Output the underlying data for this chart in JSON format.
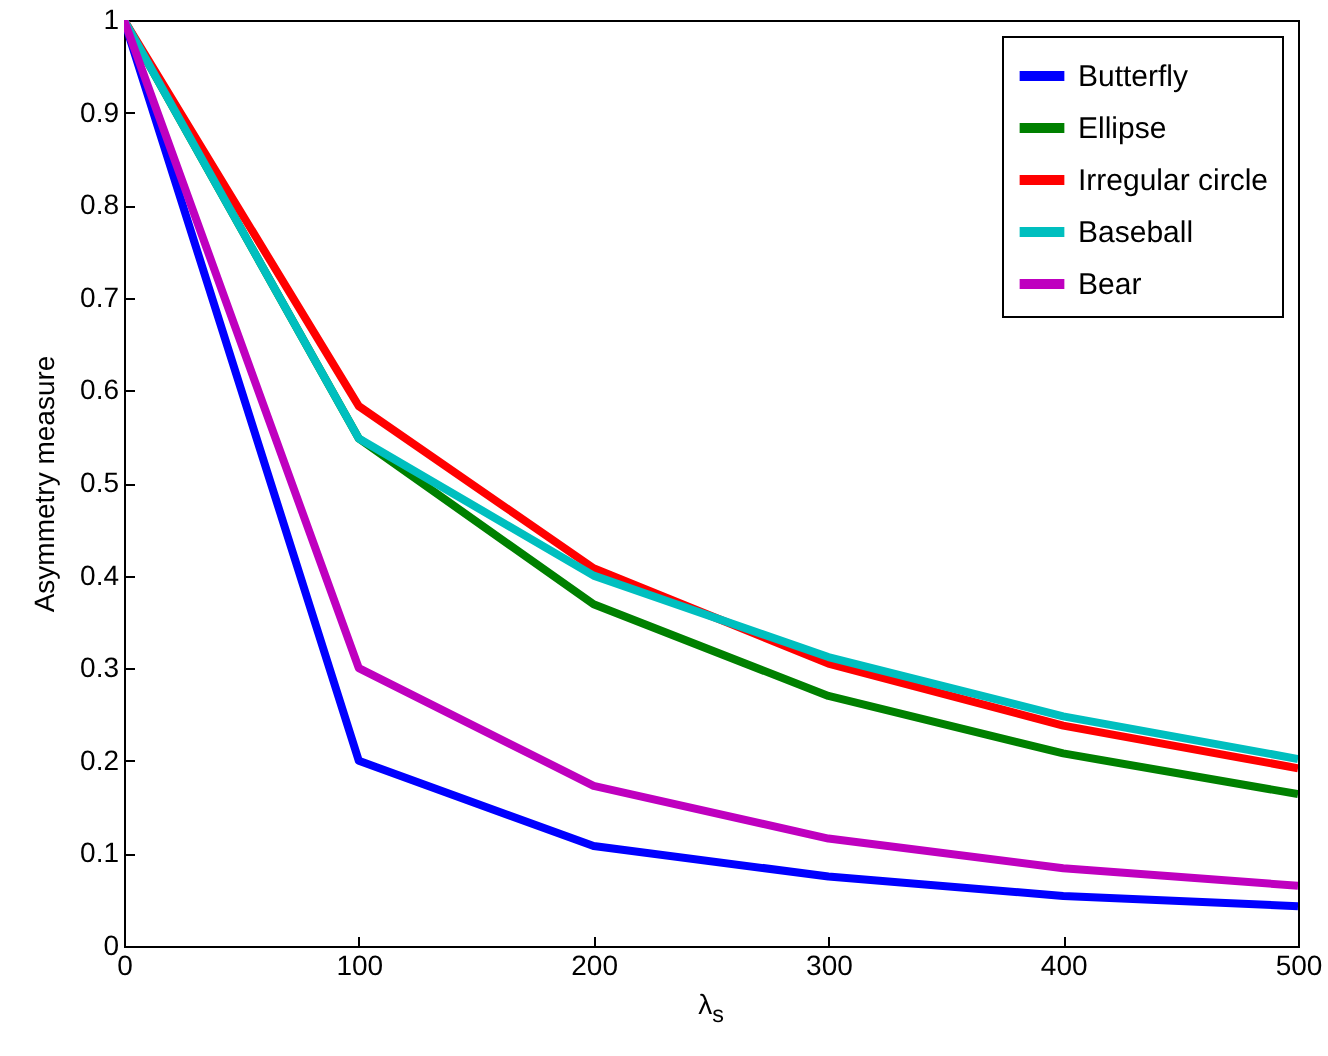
{
  "chart_data": {
    "type": "line",
    "xlabel": "λ$_{s}$",
    "ylabel": "Asymmetry measure",
    "x": [
      0,
      100,
      200,
      300,
      400,
      500
    ],
    "series": [
      {
        "name": "Butterfly",
        "color": "#0000ff",
        "values": [
          1,
          0.2,
          0.108,
          0.075,
          0.054,
          0.043
        ]
      },
      {
        "name": "Ellipse",
        "color": "#008000",
        "values": [
          1,
          0.548,
          0.369,
          0.27,
          0.208,
          0.164
        ]
      },
      {
        "name": "Irregular circle",
        "color": "#ff0000",
        "values": [
          1,
          0.583,
          0.408,
          0.305,
          0.238,
          0.192
        ]
      },
      {
        "name": "Baseball",
        "color": "#00bfbf",
        "values": [
          1,
          0.548,
          0.4,
          0.312,
          0.248,
          0.202
        ]
      },
      {
        "name": "Bear",
        "color": "#bf00bf",
        "values": [
          1,
          0.3,
          0.173,
          0.116,
          0.084,
          0.065
        ]
      }
    ],
    "xlim": [
      0,
      500
    ],
    "xticks": [
      0,
      100,
      200,
      300,
      400,
      500
    ],
    "ylim": [
      0,
      1
    ],
    "yticks": [
      0,
      0.1,
      0.2,
      0.3,
      0.4,
      0.5,
      0.6,
      0.7,
      0.8,
      0.9,
      1
    ],
    "grid": false,
    "legend": "top right",
    "marker": "none",
    "line_style": "solid"
  }
}
